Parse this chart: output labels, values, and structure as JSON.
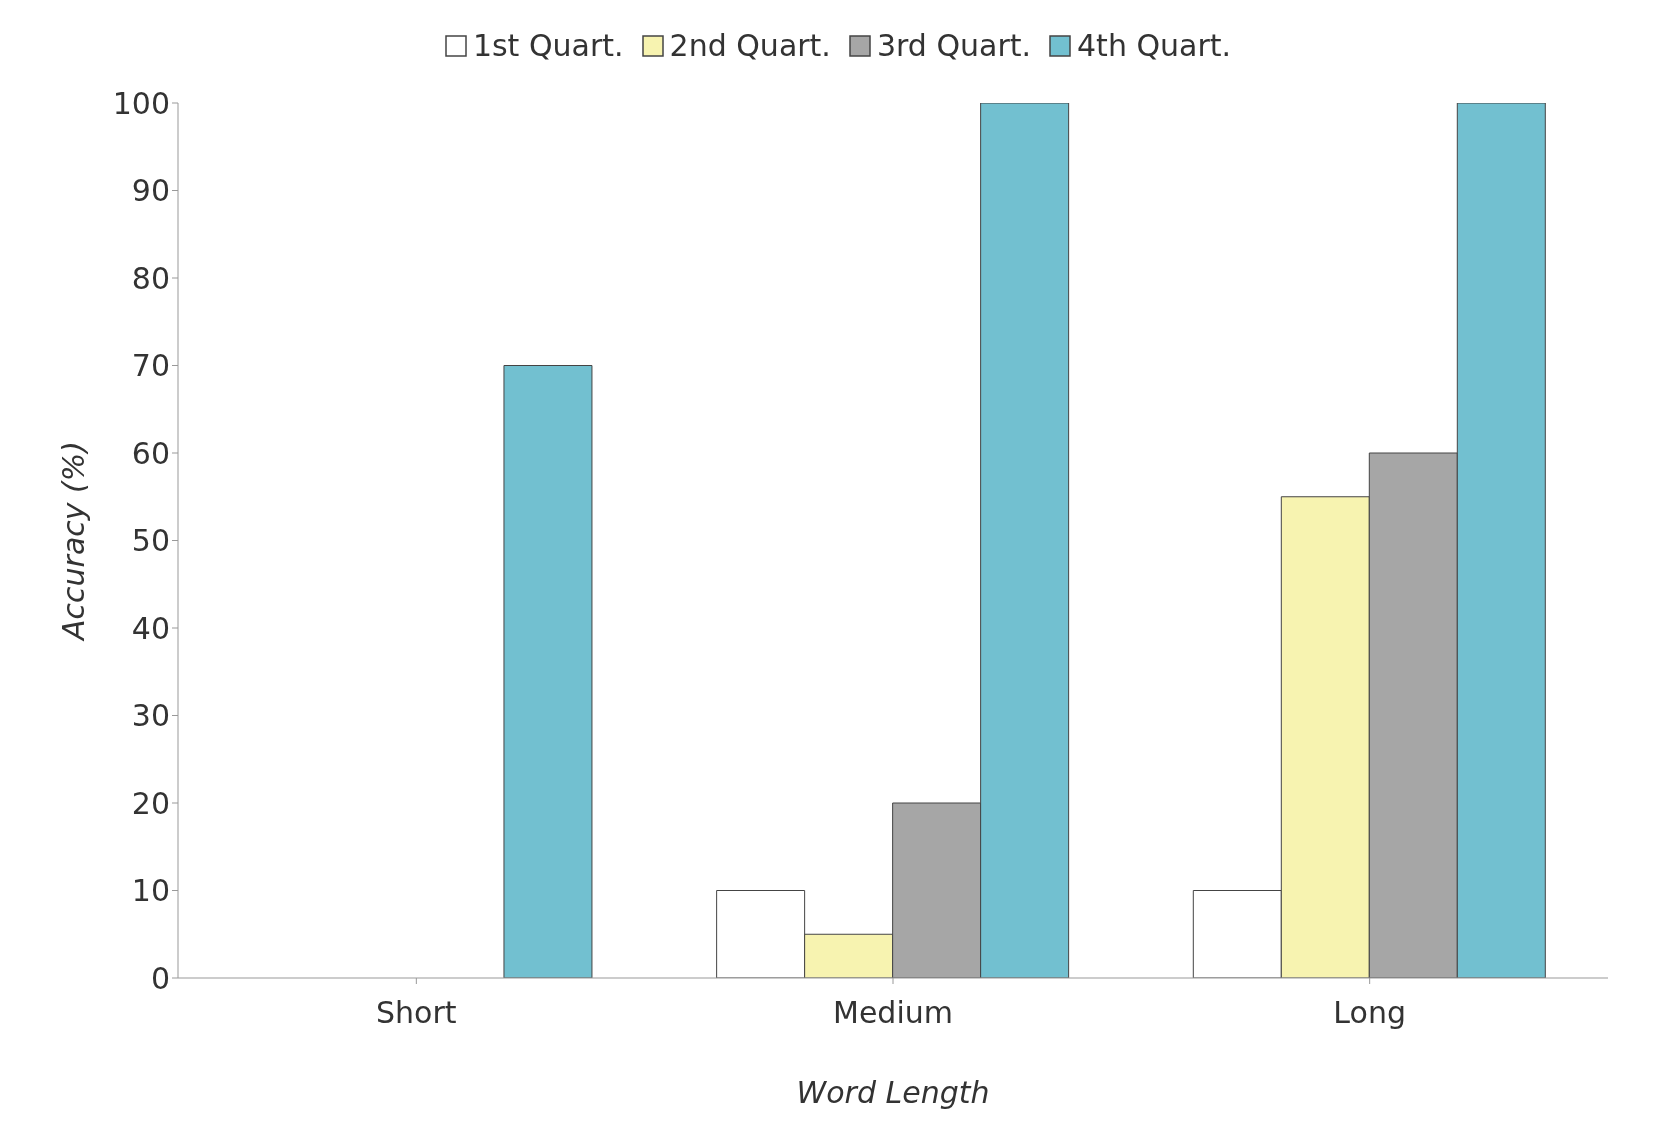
{
  "chart_data": {
    "type": "bar",
    "xlabel": "Word Length",
    "ylabel": "Accuracy (%)",
    "categories": [
      "Short",
      "Medium",
      "Long"
    ],
    "series": [
      {
        "name": "1st Quart.",
        "color": "#ffffff",
        "values": [
          0,
          10,
          10
        ]
      },
      {
        "name": "2nd Quart.",
        "color": "#f7f3b0",
        "values": [
          0,
          5,
          55
        ]
      },
      {
        "name": "3rd Quart.",
        "color": "#a6a6a6",
        "values": [
          0,
          20,
          60
        ]
      },
      {
        "name": "4th Quart.",
        "color": "#72c0d0",
        "values": [
          70,
          100,
          100
        ]
      }
    ],
    "ylim": [
      0,
      100
    ],
    "yticks": [
      0,
      10,
      20,
      30,
      40,
      50,
      60,
      70,
      80,
      90,
      100
    ],
    "grid": false,
    "legend": "top"
  }
}
